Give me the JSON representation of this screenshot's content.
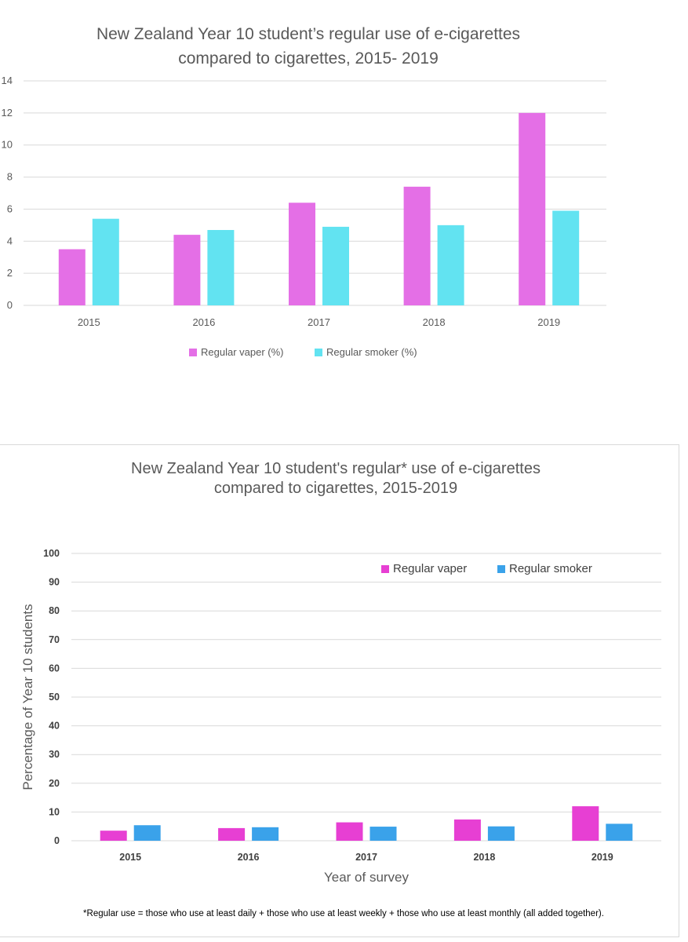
{
  "chart_data": [
    {
      "type": "bar",
      "title": "New Zealand Year 10 student’s regular use of e-cigarettes",
      "subtitle": "compared to cigarettes, 2015- 2019",
      "xlabel": "",
      "ylabel": "",
      "categories": [
        "2015",
        "2016",
        "2017",
        "2018",
        "2019"
      ],
      "ylim": [
        0,
        14
      ],
      "yticks": [
        "0",
        "2",
        "4",
        "6",
        "8",
        "10",
        "12",
        "14"
      ],
      "grid": true,
      "legend_position": "bottom",
      "colors": [
        "#e46fe6",
        "#62e3f1"
      ],
      "series": [
        {
          "name": "Regular vaper (%)",
          "values": [
            3.5,
            4.4,
            6.4,
            7.4,
            12.0
          ]
        },
        {
          "name": "Regular smoker (%)",
          "values": [
            5.4,
            4.7,
            4.9,
            5.0,
            5.9
          ]
        }
      ]
    },
    {
      "type": "bar",
      "title": "New Zealand Year 10 student's regular* use of e-cigarettes",
      "subtitle": "compared to cigarettes, 2015-2019",
      "xlabel": "Year of survey",
      "ylabel": "Percentage of Year 10 students",
      "categories": [
        "2015",
        "2016",
        "2017",
        "2018",
        "2019"
      ],
      "ylim": [
        0,
        100
      ],
      "yticks": [
        "0",
        "10",
        "20",
        "30",
        "40",
        "50",
        "60",
        "70",
        "80",
        "90",
        "100"
      ],
      "grid": true,
      "legend_position": "top-right",
      "colors": [
        "#e73fd3",
        "#3aa2ea"
      ],
      "series": [
        {
          "name": "Regular vaper",
          "values": [
            3.5,
            4.4,
            6.4,
            7.4,
            12.0
          ]
        },
        {
          "name": "Regular smoker",
          "values": [
            5.4,
            4.7,
            4.9,
            5.0,
            5.9
          ]
        }
      ],
      "footnote": "*Regular use = those who use at least daily + those who use at least weekly + those who use at least monthly (all added together)."
    }
  ]
}
